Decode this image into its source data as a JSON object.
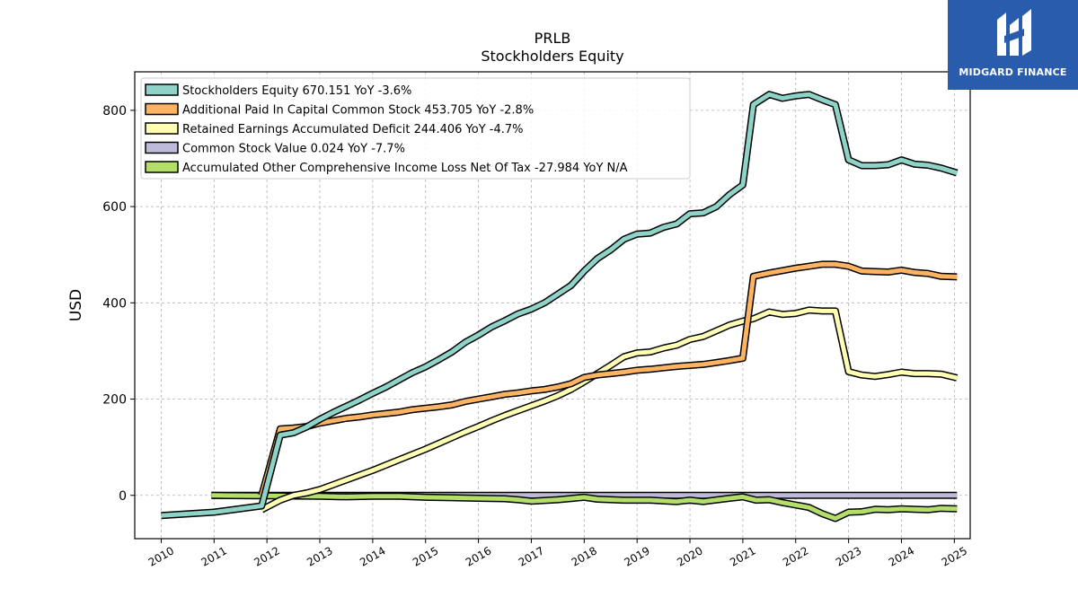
{
  "brand": {
    "name": "MIDGARD FINANCE",
    "bg_color": "#2a5cad"
  },
  "chart_data": {
    "type": "line",
    "title": "PRLB",
    "subtitle": "Stockholders  Equity",
    "ylabel": "USD",
    "xlabel": "",
    "xlim": [
      2009.5,
      2025.3
    ],
    "ylim": [
      -90,
      880
    ],
    "x_ticks": [
      2010,
      2011,
      2012,
      2013,
      2014,
      2015,
      2016,
      2017,
      2018,
      2019,
      2020,
      2021,
      2022,
      2023,
      2024,
      2025
    ],
    "x_tick_labels": [
      "2010",
      "2011",
      "2012",
      "2013",
      "2014",
      "2015",
      "2016",
      "2017",
      "2018",
      "2019",
      "2020",
      "2021",
      "2022",
      "2023",
      "2024",
      "2025"
    ],
    "y_ticks": [
      0,
      200,
      400,
      600,
      800
    ],
    "y_tick_labels": [
      "0",
      "200",
      "400",
      "600",
      "800"
    ],
    "grid": true,
    "legend_position": "top-left",
    "series": [
      {
        "name": "Stockholders Equity  670.151 YoY -3.6%",
        "color": "#8dd3c7",
        "points": [
          [
            2010.0,
            -42
          ],
          [
            2011.0,
            -35
          ],
          [
            2011.9,
            -22
          ],
          [
            2012.25,
            125
          ],
          [
            2012.5,
            130
          ],
          [
            2012.75,
            142
          ],
          [
            2013.0,
            158
          ],
          [
            2013.25,
            172
          ],
          [
            2013.5,
            185
          ],
          [
            2013.75,
            198
          ],
          [
            2014.0,
            212
          ],
          [
            2014.25,
            225
          ],
          [
            2014.5,
            240
          ],
          [
            2014.75,
            255
          ],
          [
            2015.0,
            267
          ],
          [
            2015.25,
            282
          ],
          [
            2015.5,
            298
          ],
          [
            2015.75,
            318
          ],
          [
            2016.0,
            333
          ],
          [
            2016.25,
            350
          ],
          [
            2016.5,
            363
          ],
          [
            2016.75,
            377
          ],
          [
            2017.0,
            387
          ],
          [
            2017.25,
            400
          ],
          [
            2017.5,
            418
          ],
          [
            2017.75,
            436
          ],
          [
            2018.0,
            466
          ],
          [
            2018.25,
            492
          ],
          [
            2018.5,
            510
          ],
          [
            2018.75,
            532
          ],
          [
            2019.0,
            543
          ],
          [
            2019.25,
            545
          ],
          [
            2019.5,
            557
          ],
          [
            2019.75,
            564
          ],
          [
            2020.0,
            585
          ],
          [
            2020.25,
            587
          ],
          [
            2020.5,
            600
          ],
          [
            2020.75,
            625
          ],
          [
            2021.0,
            645
          ],
          [
            2021.2,
            812
          ],
          [
            2021.5,
            833
          ],
          [
            2021.75,
            825
          ],
          [
            2022.0,
            830
          ],
          [
            2022.25,
            833
          ],
          [
            2022.5,
            822
          ],
          [
            2022.75,
            812
          ],
          [
            2023.0,
            697
          ],
          [
            2023.25,
            685
          ],
          [
            2023.5,
            685
          ],
          [
            2023.75,
            687
          ],
          [
            2024.0,
            697
          ],
          [
            2024.25,
            688
          ],
          [
            2024.5,
            686
          ],
          [
            2024.75,
            680
          ],
          [
            2025.05,
            670
          ]
        ]
      },
      {
        "name": "Additional Paid In Capital Common Stock  453.705 YoY -2.8%",
        "color": "#fdb462",
        "points": [
          [
            2011.9,
            0
          ],
          [
            2012.25,
            138
          ],
          [
            2012.5,
            140
          ],
          [
            2012.75,
            143
          ],
          [
            2013.0,
            150
          ],
          [
            2013.25,
            155
          ],
          [
            2013.5,
            160
          ],
          [
            2013.75,
            163
          ],
          [
            2014.0,
            167
          ],
          [
            2014.25,
            170
          ],
          [
            2014.5,
            173
          ],
          [
            2014.75,
            178
          ],
          [
            2015.0,
            181
          ],
          [
            2015.25,
            184
          ],
          [
            2015.5,
            188
          ],
          [
            2015.75,
            195
          ],
          [
            2016.0,
            200
          ],
          [
            2016.25,
            205
          ],
          [
            2016.5,
            210
          ],
          [
            2016.75,
            213
          ],
          [
            2017.0,
            217
          ],
          [
            2017.25,
            220
          ],
          [
            2017.5,
            225
          ],
          [
            2017.75,
            232
          ],
          [
            2018.0,
            245
          ],
          [
            2018.25,
            250
          ],
          [
            2018.5,
            253
          ],
          [
            2018.75,
            256
          ],
          [
            2019.0,
            260
          ],
          [
            2019.25,
            262
          ],
          [
            2019.5,
            265
          ],
          [
            2019.75,
            268
          ],
          [
            2020.0,
            270
          ],
          [
            2020.25,
            272
          ],
          [
            2020.5,
            276
          ],
          [
            2020.75,
            280
          ],
          [
            2021.0,
            285
          ],
          [
            2021.2,
            455
          ],
          [
            2021.5,
            462
          ],
          [
            2021.75,
            467
          ],
          [
            2022.0,
            472
          ],
          [
            2022.25,
            476
          ],
          [
            2022.5,
            480
          ],
          [
            2022.75,
            480
          ],
          [
            2023.0,
            476
          ],
          [
            2023.25,
            466
          ],
          [
            2023.5,
            465
          ],
          [
            2023.75,
            464
          ],
          [
            2024.0,
            468
          ],
          [
            2024.25,
            463
          ],
          [
            2024.5,
            461
          ],
          [
            2024.75,
            455
          ],
          [
            2025.05,
            454
          ]
        ]
      },
      {
        "name": "Retained Earnings Accumulated Deficit  244.406 YoY -4.7%",
        "color": "#ffffb3",
        "points": [
          [
            2011.9,
            -30
          ],
          [
            2012.25,
            -10
          ],
          [
            2012.5,
            0
          ],
          [
            2012.75,
            5
          ],
          [
            2013.0,
            12
          ],
          [
            2013.25,
            22
          ],
          [
            2013.5,
            32
          ],
          [
            2013.75,
            42
          ],
          [
            2014.0,
            52
          ],
          [
            2014.25,
            63
          ],
          [
            2014.5,
            74
          ],
          [
            2014.75,
            85
          ],
          [
            2015.0,
            96
          ],
          [
            2015.25,
            108
          ],
          [
            2015.5,
            120
          ],
          [
            2015.75,
            132
          ],
          [
            2016.0,
            143
          ],
          [
            2016.25,
            155
          ],
          [
            2016.5,
            166
          ],
          [
            2016.75,
            176
          ],
          [
            2017.0,
            186
          ],
          [
            2017.25,
            196
          ],
          [
            2017.5,
            207
          ],
          [
            2017.75,
            220
          ],
          [
            2018.0,
            236
          ],
          [
            2018.25,
            253
          ],
          [
            2018.5,
            270
          ],
          [
            2018.75,
            288
          ],
          [
            2019.0,
            296
          ],
          [
            2019.25,
            298
          ],
          [
            2019.5,
            306
          ],
          [
            2019.75,
            312
          ],
          [
            2020.0,
            324
          ],
          [
            2020.25,
            330
          ],
          [
            2020.5,
            342
          ],
          [
            2020.75,
            354
          ],
          [
            2021.0,
            362
          ],
          [
            2021.2,
            367
          ],
          [
            2021.5,
            381
          ],
          [
            2021.75,
            376
          ],
          [
            2022.0,
            378
          ],
          [
            2022.25,
            385
          ],
          [
            2022.5,
            383
          ],
          [
            2022.75,
            383
          ],
          [
            2023.0,
            257
          ],
          [
            2023.25,
            250
          ],
          [
            2023.5,
            247
          ],
          [
            2023.75,
            251
          ],
          [
            2024.0,
            256
          ],
          [
            2024.25,
            253
          ],
          [
            2024.5,
            253
          ],
          [
            2024.75,
            252
          ],
          [
            2025.05,
            244
          ]
        ]
      },
      {
        "name": "Common Stock Value  0.024 YoY -7.7%",
        "color": "#bebada",
        "points": [
          [
            2010.95,
            0
          ],
          [
            2011.5,
            0
          ],
          [
            2012.0,
            0
          ],
          [
            2013.0,
            0
          ],
          [
            2014.0,
            0
          ],
          [
            2015.0,
            0
          ],
          [
            2016.0,
            0
          ],
          [
            2017.0,
            0
          ],
          [
            2018.0,
            0
          ],
          [
            2019.0,
            0
          ],
          [
            2020.0,
            0
          ],
          [
            2021.0,
            0
          ],
          [
            2022.0,
            0
          ],
          [
            2023.0,
            0
          ],
          [
            2024.0,
            0
          ],
          [
            2025.05,
            0
          ]
        ]
      },
      {
        "name": "Accumulated Other Comprehensive Income Loss Net Of Tax  -27.984 YoY N/A",
        "color": "#b3de69",
        "points": [
          [
            2010.95,
            0
          ],
          [
            2012.0,
            -1
          ],
          [
            2013.0,
            -2
          ],
          [
            2013.5,
            -3
          ],
          [
            2014.0,
            -2
          ],
          [
            2014.5,
            -2
          ],
          [
            2015.0,
            -4
          ],
          [
            2015.5,
            -5
          ],
          [
            2016.0,
            -6
          ],
          [
            2016.5,
            -7
          ],
          [
            2016.75,
            -9
          ],
          [
            2017.0,
            -12
          ],
          [
            2017.5,
            -9
          ],
          [
            2018.0,
            -4
          ],
          [
            2018.25,
            -8
          ],
          [
            2018.75,
            -10
          ],
          [
            2019.25,
            -10
          ],
          [
            2019.75,
            -13
          ],
          [
            2020.0,
            -10
          ],
          [
            2020.25,
            -13
          ],
          [
            2020.75,
            -6
          ],
          [
            2021.0,
            -3
          ],
          [
            2021.25,
            -10
          ],
          [
            2021.5,
            -9
          ],
          [
            2021.75,
            -15
          ],
          [
            2022.0,
            -20
          ],
          [
            2022.25,
            -25
          ],
          [
            2022.5,
            -38
          ],
          [
            2022.75,
            -48
          ],
          [
            2023.0,
            -35
          ],
          [
            2023.25,
            -34
          ],
          [
            2023.5,
            -29
          ],
          [
            2023.75,
            -30
          ],
          [
            2024.0,
            -28
          ],
          [
            2024.5,
            -30
          ],
          [
            2024.75,
            -27
          ],
          [
            2025.05,
            -28
          ]
        ]
      }
    ]
  }
}
